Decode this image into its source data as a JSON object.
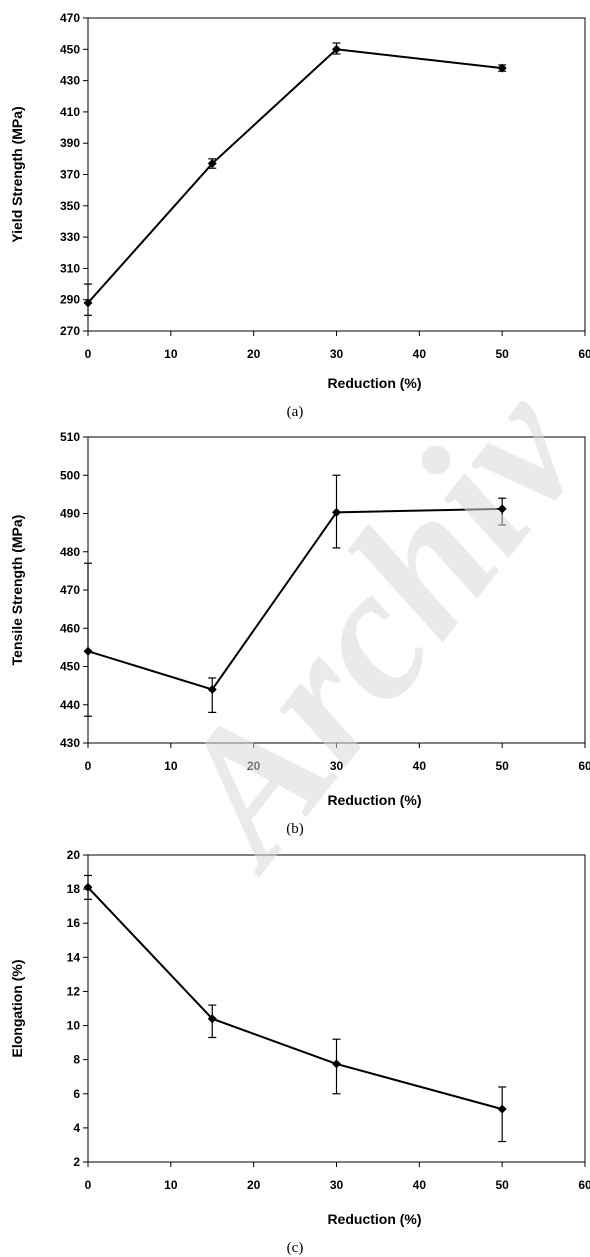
{
  "chart_data": [
    {
      "type": "line",
      "xlabel": "Reduction (%)",
      "ylabel": "Yield Strength (MPa)",
      "caption": "(a)",
      "xlim": [
        0,
        60
      ],
      "ylim": [
        270,
        470
      ],
      "xticks": [
        0,
        10,
        20,
        30,
        40,
        50,
        60
      ],
      "yticks": [
        270,
        290,
        310,
        330,
        350,
        370,
        390,
        410,
        430,
        450,
        470
      ],
      "grid": false,
      "series": [
        {
          "x": [
            0,
            15,
            30,
            50
          ],
          "y": [
            288,
            377,
            450,
            438
          ],
          "err_low": [
            280,
            374,
            447,
            436
          ],
          "err_high": [
            300,
            380,
            454,
            440
          ]
        }
      ]
    },
    {
      "type": "line",
      "xlabel": "Reduction (%)",
      "ylabel": "Tensile Strength (MPa)",
      "caption": "(b)",
      "xlim": [
        0,
        60
      ],
      "ylim": [
        430,
        510
      ],
      "xticks": [
        0,
        10,
        20,
        30,
        40,
        50,
        60
      ],
      "yticks": [
        430,
        440,
        450,
        460,
        470,
        480,
        490,
        500,
        510
      ],
      "grid": false,
      "series": [
        {
          "x": [
            0,
            15,
            30,
            50
          ],
          "y": [
            454,
            444,
            490.3,
            491.2
          ],
          "err_low": [
            437,
            438,
            481,
            487
          ],
          "err_high": [
            477,
            447,
            500,
            494
          ]
        }
      ]
    },
    {
      "type": "line",
      "xlabel": "Reduction (%)",
      "ylabel": "Elongation (%)",
      "caption": "(c)",
      "xlim": [
        0,
        60
      ],
      "ylim": [
        2,
        20
      ],
      "xticks": [
        0,
        10,
        20,
        30,
        40,
        50,
        60
      ],
      "yticks": [
        2,
        4,
        6,
        8,
        10,
        12,
        14,
        16,
        18,
        20
      ],
      "grid": false,
      "series": [
        {
          "x": [
            0,
            15,
            30,
            50
          ],
          "y": [
            18.1,
            10.4,
            7.75,
            5.1
          ],
          "err_low": [
            17.4,
            9.3,
            6.0,
            3.2
          ],
          "err_high": [
            18.8,
            11.2,
            9.2,
            6.4
          ]
        }
      ]
    }
  ],
  "watermark": "Archiv"
}
